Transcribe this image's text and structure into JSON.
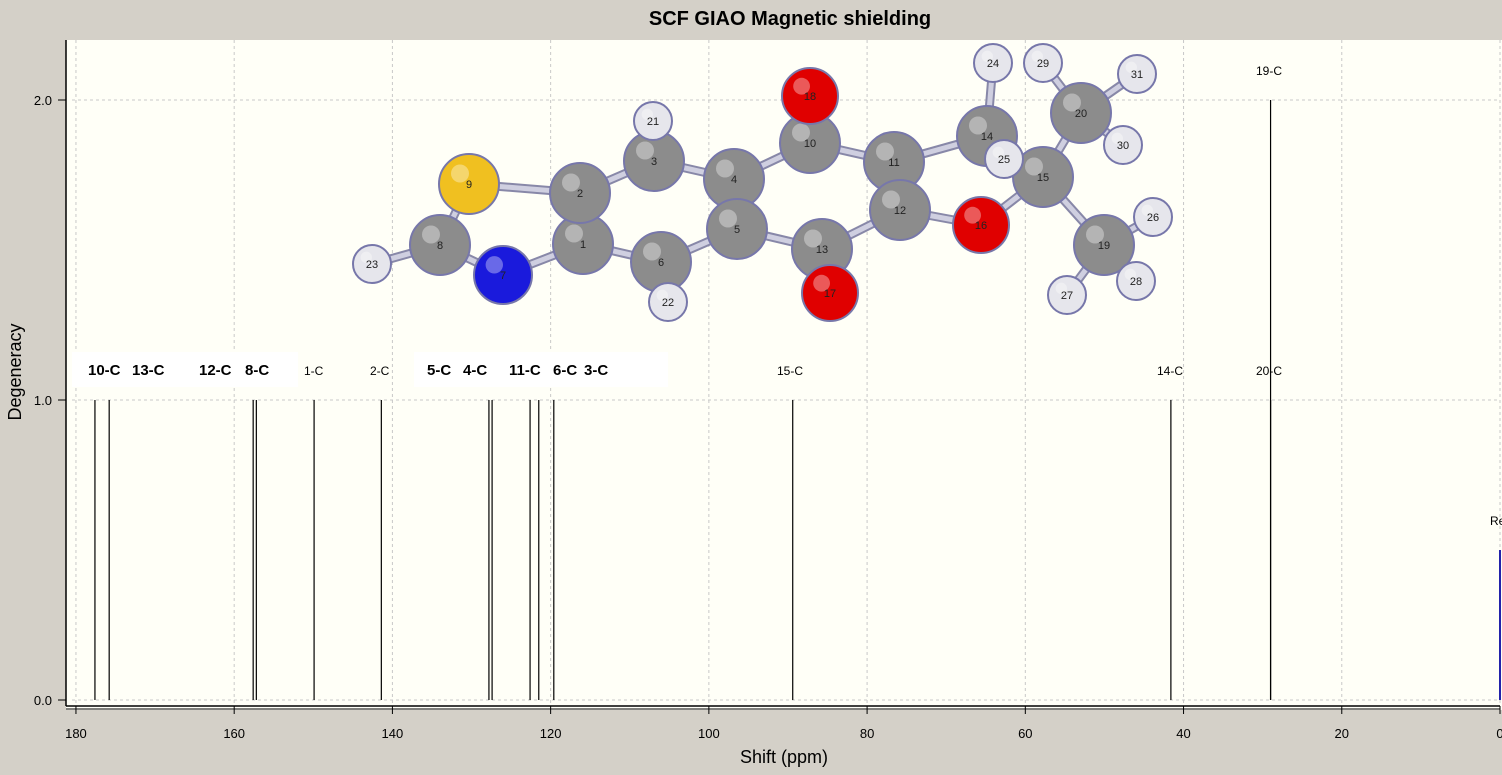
{
  "window": {
    "title": "SCF GIAO Magnetic shielding"
  },
  "chart_data": {
    "type": "bar",
    "title": "SCF GIAO Magnetic shielding",
    "xlabel": "Shift (ppm)",
    "ylabel": "Degeneracy",
    "xlim": [
      180.5,
      0
    ],
    "ylim": [
      -0.02,
      2.2
    ],
    "x_ticks": [
      "180",
      "160",
      "140",
      "120",
      "100",
      "80",
      "60",
      "40",
      "20",
      "0"
    ],
    "x_tick_values": [
      180,
      160,
      140,
      120,
      100,
      80,
      60,
      40,
      20,
      0
    ],
    "y_ticks": [
      "0.0",
      "1.0",
      "2.0"
    ],
    "y_tick_values": [
      0,
      1,
      2
    ],
    "grid": true,
    "peaks": [
      {
        "label": "10-C",
        "shift": 177.6,
        "degeneracy": 1,
        "bold": true
      },
      {
        "label": "13-C",
        "shift": 175.8,
        "degeneracy": 1,
        "bold": true
      },
      {
        "label": "12-C",
        "shift": 157.6,
        "degeneracy": 1,
        "bold": true
      },
      {
        "label": "8-C",
        "shift": 157.2,
        "degeneracy": 1,
        "bold": true
      },
      {
        "label": "1-C",
        "shift": 149.9,
        "degeneracy": 1,
        "bold": false
      },
      {
        "label": "2-C",
        "shift": 141.4,
        "degeneracy": 1,
        "bold": false
      },
      {
        "label": "5-C",
        "shift": 127.8,
        "degeneracy": 1,
        "bold": true
      },
      {
        "label": "4-C",
        "shift": 127.4,
        "degeneracy": 1,
        "bold": true
      },
      {
        "label": "11-C",
        "shift": 122.6,
        "degeneracy": 1,
        "bold": true
      },
      {
        "label": "6-C",
        "shift": 121.5,
        "degeneracy": 1,
        "bold": true
      },
      {
        "label": "3-C",
        "shift": 119.6,
        "degeneracy": 1,
        "bold": true
      },
      {
        "label": "15-C",
        "shift": 89.4,
        "degeneracy": 1,
        "bold": false
      },
      {
        "label": "14-C",
        "shift": 41.6,
        "degeneracy": 1,
        "bold": false
      },
      {
        "label": "20-C",
        "shift": 29.0,
        "degeneracy": 1,
        "bold": false
      },
      {
        "label": "19-C",
        "shift": 29.0,
        "degeneracy": 2,
        "bold": false
      },
      {
        "label": "Re",
        "shift": 0,
        "degeneracy": 0.5,
        "bold": false
      }
    ],
    "atom_labels": [
      "1",
      "2",
      "3",
      "4",
      "5",
      "6",
      "7",
      "8",
      "9",
      "10",
      "11",
      "12",
      "13",
      "14",
      "15",
      "16",
      "17",
      "18",
      "19",
      "20",
      "21",
      "22",
      "23",
      "24",
      "25",
      "26",
      "27",
      "28",
      "29",
      "30",
      "31"
    ],
    "colors": {
      "plot_bg": "#fffff7",
      "frame_bg": "#d4d0c8",
      "grid": "#c8c8c8",
      "peak": "#000000",
      "reference": "#2222aa",
      "carbon": "#8c8c8c",
      "hydrogen": "#e6e6ec",
      "oxygen": "#e00000",
      "nitrogen": "#1a1adc",
      "sulfur": "#f0c020",
      "bond": "#cfcfe0"
    }
  }
}
